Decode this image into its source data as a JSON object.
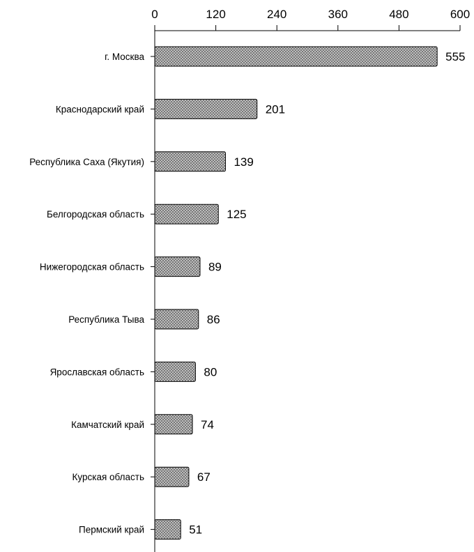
{
  "chart_data": {
    "type": "bar",
    "orientation": "horizontal",
    "categories": [
      "г. Москва",
      "Краснодарский край",
      "Республика Саха (Якутия)",
      "Белгородская область",
      "Нижегородская область",
      "Республика Тыва",
      "Ярославская область",
      "Камчатский край",
      "Курская область",
      "Пермский край"
    ],
    "values": [
      555,
      201,
      139,
      125,
      89,
      86,
      80,
      74,
      67,
      51
    ],
    "xlim": [
      0,
      600
    ],
    "xticks": [
      0,
      120,
      240,
      360,
      480,
      600
    ],
    "axis_position": "top",
    "grid": false,
    "legend": "none",
    "bar_fill": "crosshatch-gray",
    "colors": {
      "bar_stroke": "#000000",
      "bar_pattern_bg": "#d4d4d4",
      "bar_pattern_line": "#6a6a6a"
    }
  }
}
